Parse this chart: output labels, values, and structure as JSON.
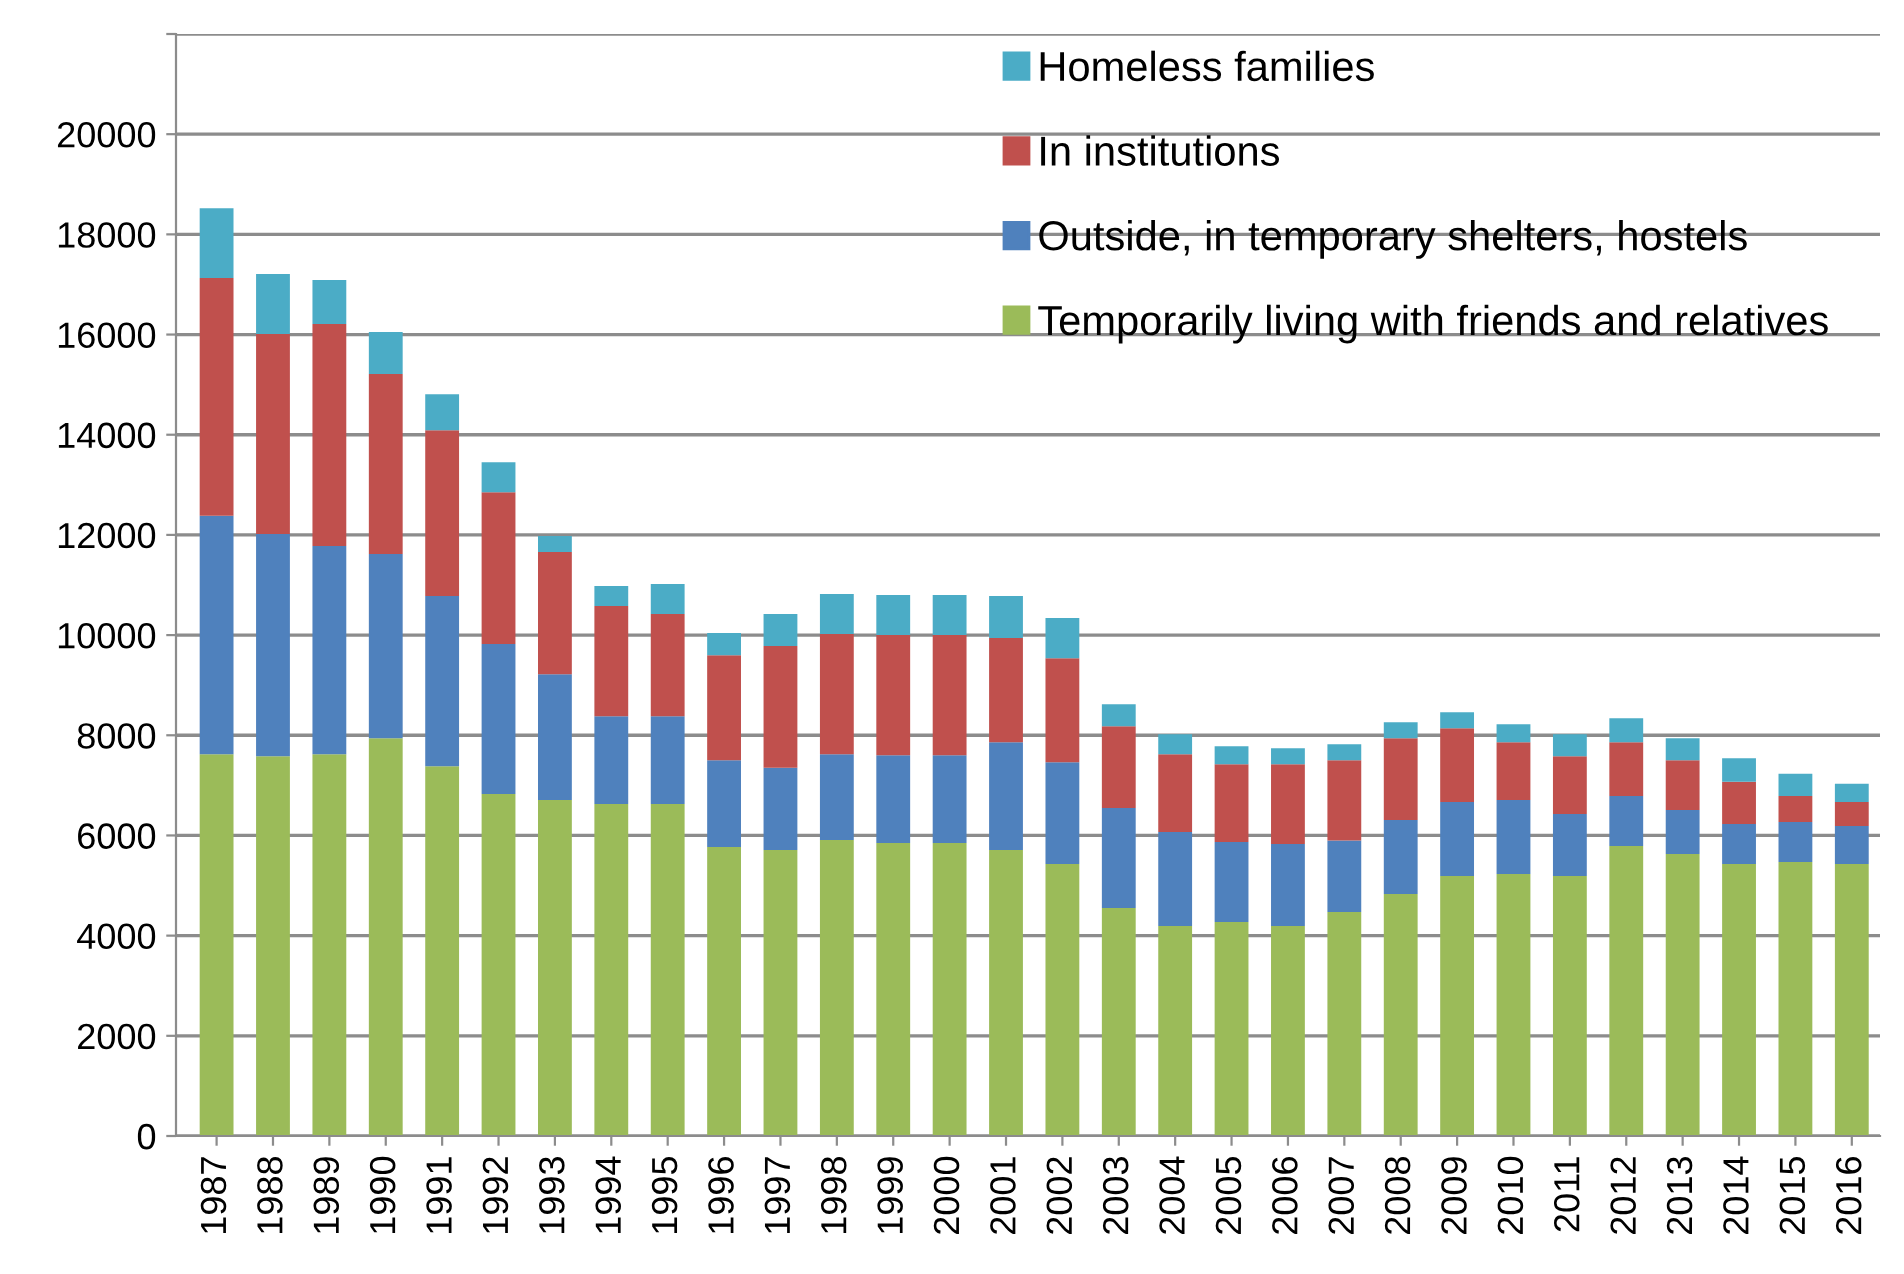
{
  "chart_data": {
    "type": "bar",
    "stacked": true,
    "categories": [
      "1987",
      "1988",
      "1989",
      "1990",
      "1991",
      "1992",
      "1993",
      "1994",
      "1995",
      "1996",
      "1997",
      "1998",
      "1999",
      "2000",
      "2001",
      "2002",
      "2003",
      "2004",
      "2005",
      "2006",
      "2007",
      "2008",
      "2009",
      "2010",
      "2011",
      "2012",
      "2013",
      "2014",
      "2015",
      "2016"
    ],
    "series": [
      {
        "name": "Temporarily living with friends and relatives",
        "color": "#9bbb59",
        "values": [
          7620,
          7580,
          7620,
          7940,
          7380,
          6830,
          6710,
          6630,
          6630,
          5770,
          5710,
          5910,
          5850,
          5850,
          5710,
          5430,
          4550,
          4190,
          4270,
          4190,
          4470,
          4830,
          5190,
          5230,
          5190,
          5790,
          5630,
          5430,
          5470,
          5430
        ]
      },
      {
        "name": "Outside, in temporary shelters, hostels",
        "color": "#4f81bd",
        "values": [
          4760,
          4440,
          4160,
          3680,
          3400,
          2990,
          2510,
          1750,
          1750,
          1730,
          1640,
          1710,
          1750,
          1750,
          2150,
          2030,
          2000,
          1880,
          1600,
          1640,
          1430,
          1480,
          1480,
          1480,
          1240,
          1000,
          880,
          800,
          800,
          760
        ]
      },
      {
        "name": "In institutions",
        "color": "#c0504d",
        "values": [
          4750,
          3990,
          4430,
          3590,
          3310,
          3030,
          2440,
          2200,
          2040,
          2100,
          2430,
          2400,
          2400,
          2400,
          2080,
          2080,
          1630,
          1550,
          1550,
          1590,
          1600,
          1630,
          1470,
          1150,
          1150,
          1070,
          990,
          840,
          520,
          480
        ]
      },
      {
        "name": "Homeless families",
        "color": "#4bacc6",
        "values": [
          1390,
          1200,
          880,
          840,
          720,
          600,
          320,
          400,
          600,
          440,
          640,
          800,
          800,
          800,
          840,
          800,
          440,
          400,
          360,
          320,
          320,
          320,
          320,
          360,
          440,
          480,
          440,
          470,
          440,
          360
        ]
      }
    ],
    "ylim": [
      0,
      22000
    ],
    "yticks": [
      0,
      2000,
      4000,
      6000,
      8000,
      10000,
      12000,
      14000,
      16000,
      18000,
      20000,
      {
        "value": 22000,
        "label": null
      }
    ],
    "grid": "y",
    "legend": "top right"
  }
}
